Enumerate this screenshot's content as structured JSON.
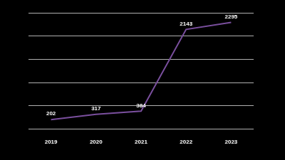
{
  "chart_data": {
    "type": "line",
    "categories": [
      "2019",
      "2020",
      "2021",
      "2022",
      "2023"
    ],
    "values": [
      202,
      317,
      384,
      2143,
      2295
    ],
    "color": "#7a4f9e",
    "ylim": [
      0,
      2500
    ],
    "yticks": [
      0,
      500,
      1000,
      1500,
      2000,
      2500
    ],
    "grid": true,
    "data_labels": true,
    "tick_labels": "x"
  }
}
